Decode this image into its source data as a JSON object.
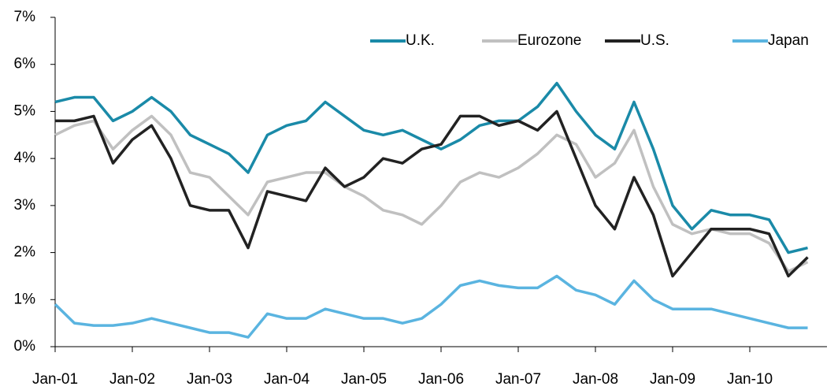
{
  "chart_data": {
    "type": "line",
    "categories": [
      "Jan-01",
      null,
      null,
      null,
      "Jan-02",
      null,
      null,
      null,
      "Jan-03",
      null,
      null,
      null,
      "Jan-04",
      null,
      null,
      null,
      "Jan-05",
      null,
      null,
      null,
      "Jan-06",
      null,
      null,
      null,
      "Jan-07",
      null,
      null,
      null,
      "Jan-08",
      null,
      null,
      null,
      "Jan-09",
      null,
      null,
      null,
      "Jan-10",
      null,
      null,
      null
    ],
    "series": [
      {
        "name": "U.K.",
        "color": "#1a8aa8",
        "values": [
          5.2,
          5.3,
          5.3,
          4.8,
          5.0,
          5.3,
          5.0,
          4.5,
          4.3,
          4.1,
          3.7,
          4.5,
          4.7,
          4.8,
          5.2,
          4.9,
          4.6,
          4.5,
          4.6,
          4.4,
          4.2,
          4.4,
          4.7,
          4.8,
          4.8,
          5.1,
          5.6,
          5.0,
          4.5,
          4.2,
          5.2,
          4.2,
          3.0,
          2.5,
          2.9,
          2.8,
          2.8,
          2.7,
          2.0,
          2.1
        ]
      },
      {
        "name": "Eurozone",
        "color": "#c0c0c0",
        "values": [
          4.5,
          4.7,
          4.8,
          4.2,
          4.6,
          4.9,
          4.5,
          3.7,
          3.6,
          3.2,
          2.8,
          3.5,
          3.6,
          3.7,
          3.7,
          3.4,
          3.2,
          2.9,
          2.8,
          2.6,
          3.0,
          3.5,
          3.7,
          3.6,
          3.8,
          4.1,
          4.5,
          4.3,
          3.6,
          3.9,
          4.6,
          3.4,
          2.6,
          2.4,
          2.5,
          2.4,
          2.4,
          2.2,
          1.6,
          1.8
        ]
      },
      {
        "name": "U.S.",
        "color": "#222222",
        "values": [
          4.8,
          4.8,
          4.9,
          3.9,
          4.4,
          4.7,
          4.0,
          3.0,
          2.9,
          2.9,
          2.1,
          3.3,
          3.2,
          3.1,
          3.8,
          3.4,
          3.6,
          4.0,
          3.9,
          4.2,
          4.3,
          4.9,
          4.9,
          4.7,
          4.8,
          4.6,
          5.0,
          4.0,
          3.0,
          2.5,
          3.6,
          2.8,
          1.5,
          2.0,
          2.5,
          2.5,
          2.5,
          2.4,
          1.5,
          1.9
        ]
      },
      {
        "name": "Japan",
        "color": "#5ab4e0",
        "values": [
          0.9,
          0.5,
          0.45,
          0.45,
          0.5,
          0.6,
          0.5,
          0.4,
          0.3,
          0.3,
          0.2,
          0.7,
          0.6,
          0.6,
          0.8,
          0.7,
          0.6,
          0.6,
          0.5,
          0.6,
          0.9,
          1.3,
          1.4,
          1.3,
          1.25,
          1.25,
          1.5,
          1.2,
          1.1,
          0.9,
          1.4,
          1.0,
          0.8,
          0.8,
          0.8,
          0.7,
          0.6,
          0.5,
          0.4,
          0.4
        ]
      }
    ],
    "ylim": [
      0,
      7
    ],
    "yticks": [
      {
        "value": 0,
        "label": "0%"
      },
      {
        "value": 1,
        "label": "1%"
      },
      {
        "value": 2,
        "label": "2%"
      },
      {
        "value": 3,
        "label": "3%"
      },
      {
        "value": 4,
        "label": "4%"
      },
      {
        "value": 5,
        "label": "5%"
      },
      {
        "value": 6,
        "label": "6%"
      },
      {
        "value": 7,
        "label": "7%"
      }
    ],
    "legend": "top-right",
    "grid": false
  }
}
